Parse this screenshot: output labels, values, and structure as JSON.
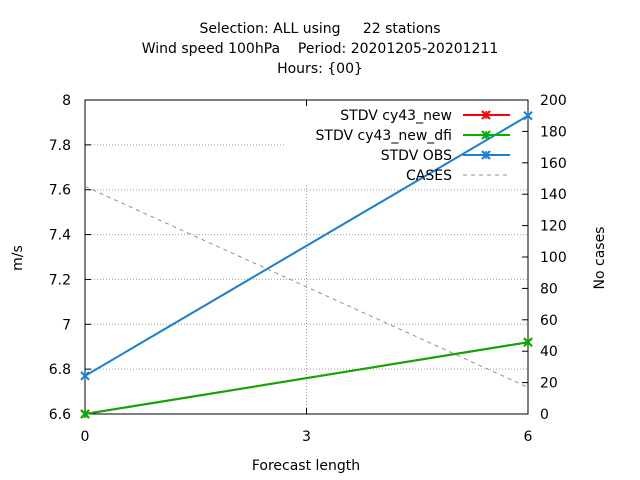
{
  "title": {
    "line1": "Selection: ALL using     22 stations",
    "line2": "Wind speed 100hPa    Period: 20201205-20201211",
    "line3": "Hours: {00}"
  },
  "chart_data": {
    "type": "line",
    "x": [
      0,
      3,
      6
    ],
    "xlabel": "Forecast length",
    "ylabel": "m/s",
    "y2label": "No cases",
    "xlim": [
      0,
      6
    ],
    "ylim": [
      6.6,
      8.0
    ],
    "y2lim": [
      0,
      200
    ],
    "xticks": [
      "0",
      "3",
      "6"
    ],
    "yticks": [
      "6.6",
      "6.8",
      "7",
      "7.2",
      "7.4",
      "7.6",
      "7.8",
      "8"
    ],
    "y2ticks": [
      "0",
      "20",
      "40",
      "60",
      "80",
      "100",
      "120",
      "140",
      "160",
      "180",
      "200"
    ],
    "grid": true,
    "legend_position": "top-right",
    "series": [
      {
        "name": "STDV cy43_new",
        "axis": "left",
        "color": "#ff0000",
        "style": "solid",
        "marker": "x",
        "x": [
          0,
          6
        ],
        "values": [
          6.6,
          6.92
        ]
      },
      {
        "name": "STDV cy43_new_dfi",
        "axis": "left",
        "color": "#00b000",
        "style": "solid",
        "marker": "x",
        "x": [
          0,
          6
        ],
        "values": [
          6.6,
          6.92
        ]
      },
      {
        "name": "STDV OBS",
        "axis": "left",
        "color": "#1a7fd4",
        "style": "solid",
        "marker": "x",
        "x": [
          0,
          6
        ],
        "values": [
          6.77,
          7.93
        ]
      },
      {
        "name": "CASES",
        "axis": "right",
        "color": "#909090",
        "style": "dashed",
        "marker": "none",
        "x": [
          0,
          6
        ],
        "values": [
          145,
          17
        ]
      }
    ]
  }
}
